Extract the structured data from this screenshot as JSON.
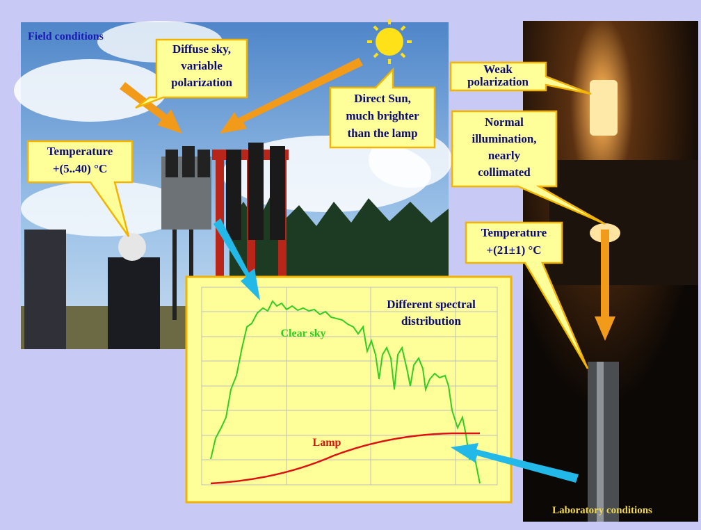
{
  "field_label": "Field conditions",
  "lab_label": "Laboratory conditions",
  "callouts": {
    "diffuse_sky": [
      "Diffuse sky,",
      "variable",
      "polarization"
    ],
    "direct_sun": [
      "Direct Sun,",
      "much brighter",
      "than the lamp"
    ],
    "field_temperature": [
      "Temperature",
      "+(5..40) °C"
    ],
    "weak_polarization": [
      "Weak",
      "polarization"
    ],
    "normal_illumination": [
      "Normal",
      "illumination,",
      "nearly",
      "collimated"
    ],
    "lab_temperature": [
      "Temperature",
      "+(21±1) °C"
    ]
  },
  "spectrum": {
    "title": [
      "Different spectral",
      "distribution"
    ],
    "clear_sky": "Clear sky",
    "lamp": "Lamp"
  }
}
